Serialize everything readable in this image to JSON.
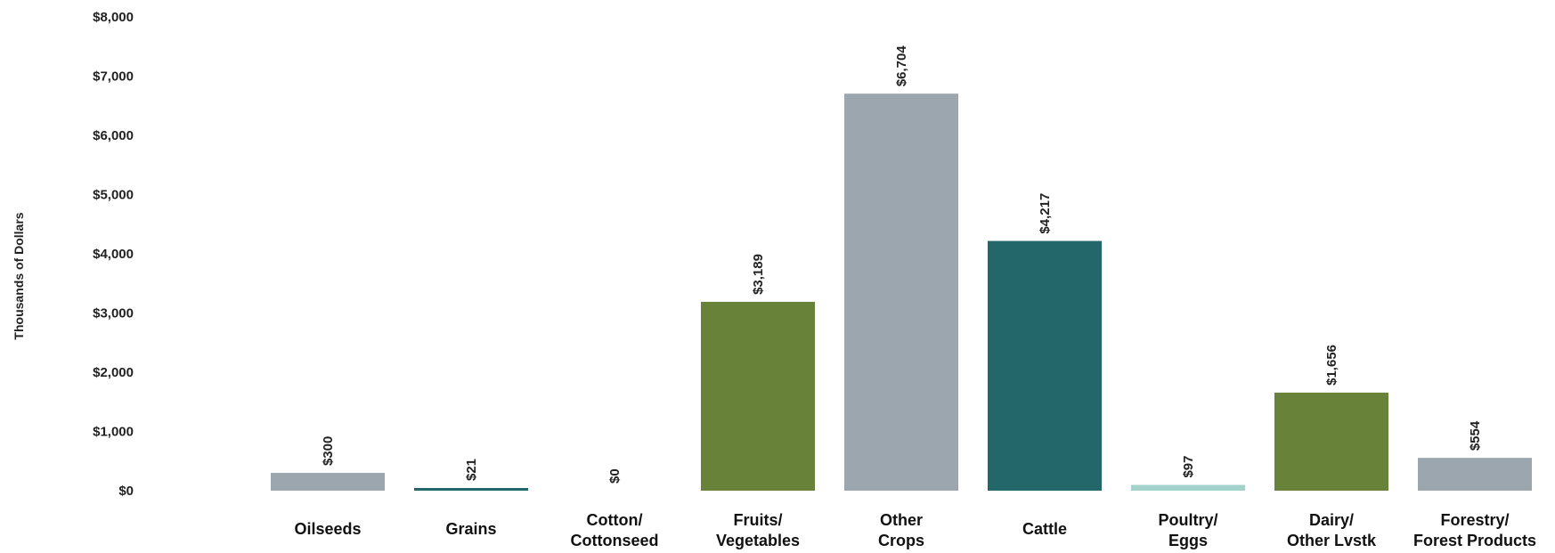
{
  "chart_data": {
    "type": "bar",
    "ylabel": "Thousands  of Dollars",
    "xlabel": "",
    "ylim": [
      0,
      8000
    ],
    "yticks": [
      0,
      1000,
      2000,
      3000,
      4000,
      5000,
      6000,
      7000,
      8000
    ],
    "ytick_labels": [
      "$0",
      "$1,000",
      "$2,000",
      "$3,000",
      "$4,000",
      "$5,000",
      "$6,000",
      "$7,000",
      "$8,000"
    ],
    "grid": false,
    "legend": "none",
    "categories": [
      [
        "Oilseeds"
      ],
      [
        "Grains"
      ],
      [
        "Cotton/",
        "Cottonseed"
      ],
      [
        "Fruits/",
        "Vegetables"
      ],
      [
        "Other",
        "Crops"
      ],
      [
        "Cattle"
      ],
      [
        "Poultry/",
        "Eggs"
      ],
      [
        "Dairy/",
        "Other Lvstk"
      ],
      [
        "Forestry/",
        "Forest Products"
      ]
    ],
    "values": [
      300,
      21,
      0,
      3189,
      6704,
      4217,
      97,
      1656,
      554
    ],
    "value_labels": [
      "$300",
      "$21",
      "$0",
      "$3,189",
      "$6,704",
      "$4,217",
      "$97",
      "$1,656",
      "$554"
    ],
    "colors": [
      "#9ba6af",
      "#24676b",
      "#24676b",
      "#68823a",
      "#9ba6af",
      "#24676b",
      "#a3d1cc",
      "#68823a",
      "#9ba6af"
    ]
  }
}
